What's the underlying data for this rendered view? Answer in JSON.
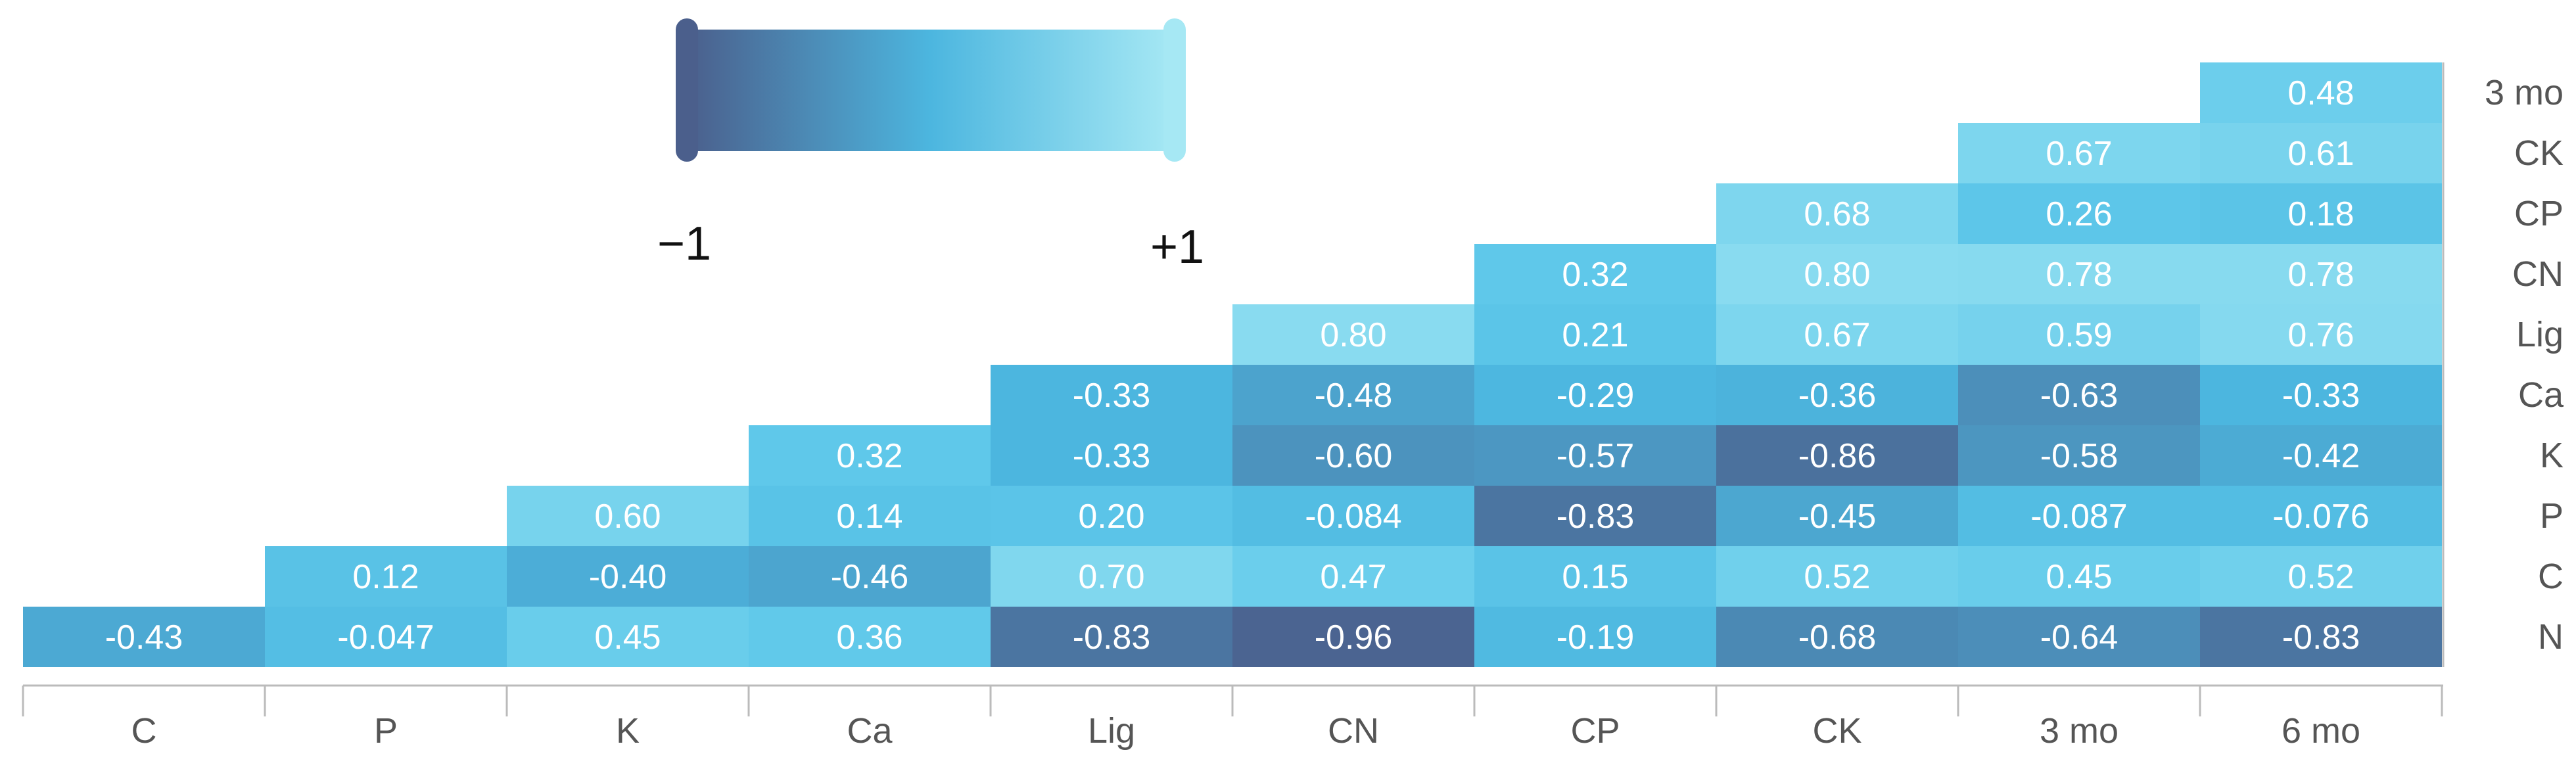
{
  "chart_data": {
    "type": "heatmap",
    "title": "",
    "xlabel": "",
    "ylabel": "",
    "columns": [
      "C",
      "P",
      "K",
      "Ca",
      "Lig",
      "CN",
      "CP",
      "CK",
      "3 mo",
      "6 mo"
    ],
    "rows": [
      "3 mo",
      "CK",
      "CP",
      "CN",
      "Lig",
      "Ca",
      "K",
      "P",
      "C",
      "N"
    ],
    "values": [
      [
        null,
        null,
        null,
        null,
        null,
        null,
        null,
        null,
        null,
        0.48
      ],
      [
        null,
        null,
        null,
        null,
        null,
        null,
        null,
        null,
        0.67,
        0.61
      ],
      [
        null,
        null,
        null,
        null,
        null,
        null,
        null,
        0.68,
        0.26,
        0.18
      ],
      [
        null,
        null,
        null,
        null,
        null,
        null,
        0.32,
        0.8,
        0.78,
        0.78
      ],
      [
        null,
        null,
        null,
        null,
        null,
        0.8,
        0.21,
        0.67,
        0.59,
        0.76
      ],
      [
        null,
        null,
        null,
        null,
        -0.33,
        -0.48,
        -0.29,
        -0.36,
        -0.63,
        -0.33
      ],
      [
        null,
        null,
        null,
        0.32,
        -0.33,
        -0.6,
        -0.57,
        -0.86,
        -0.58,
        -0.42
      ],
      [
        null,
        null,
        0.6,
        0.14,
        0.2,
        -0.084,
        -0.83,
        -0.45,
        -0.087,
        -0.076
      ],
      [
        null,
        0.12,
        -0.4,
        -0.46,
        0.7,
        0.47,
        0.15,
        0.52,
        0.45,
        0.52
      ],
      [
        -0.43,
        -0.047,
        0.45,
        0.36,
        -0.83,
        -0.96,
        -0.19,
        -0.68,
        -0.64,
        -0.83
      ]
    ],
    "labels": [
      [
        null,
        null,
        null,
        null,
        null,
        null,
        null,
        null,
        null,
        "0.48"
      ],
      [
        null,
        null,
        null,
        null,
        null,
        null,
        null,
        null,
        "0.67",
        "0.61"
      ],
      [
        null,
        null,
        null,
        null,
        null,
        null,
        null,
        "0.68",
        "0.26",
        "0.18"
      ],
      [
        null,
        null,
        null,
        null,
        null,
        null,
        "0.32",
        "0.80",
        "0.78",
        "0.78"
      ],
      [
        null,
        null,
        null,
        null,
        null,
        "0.80",
        "0.21",
        "0.67",
        "0.59",
        "0.76"
      ],
      [
        null,
        null,
        null,
        null,
        "-0.33",
        "-0.48",
        "-0.29",
        "-0.36",
        "-0.63",
        "-0.33"
      ],
      [
        null,
        null,
        null,
        "0.32",
        "-0.33",
        "-0.60",
        "-0.57",
        "-0.86",
        "-0.58",
        "-0.42"
      ],
      [
        null,
        null,
        "0.60",
        "0.14",
        "0.20",
        "-0.084",
        "-0.83",
        "-0.45",
        "-0.087",
        "-0.076"
      ],
      [
        null,
        "0.12",
        "-0.40",
        "-0.46",
        "0.70",
        "0.47",
        "0.15",
        "0.52",
        "0.45",
        "0.52"
      ],
      [
        "-0.43",
        "-0.047",
        "0.45",
        "0.36",
        "-0.83",
        "-0.96",
        "-0.19",
        "-0.68",
        "-0.64",
        "-0.83"
      ]
    ],
    "colorscale": {
      "min": -1,
      "max": 1,
      "min_label": "−1",
      "max_label": "+1",
      "colors": [
        "#4b5f8c",
        "#4cb6df",
        "#5fc8ea",
        "#9be3f2"
      ]
    },
    "legend_placement": "top-left",
    "x_axis_position": "bottom",
    "y_axis_position": "right"
  }
}
